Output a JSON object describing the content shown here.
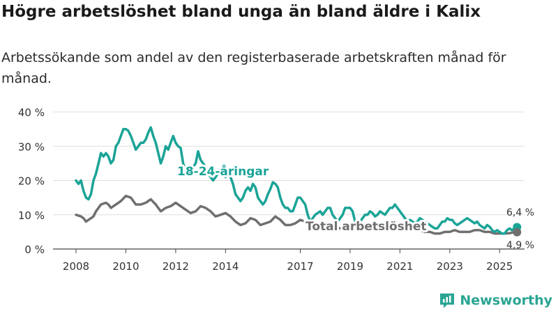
{
  "title": "Högre arbetslöshet bland unga än bland äldre i Kalix",
  "subtitle": "Arbetssökande som andel av den registerbaserade arbetskraften månad för månad.",
  "brand": "Newsworthy",
  "colors": {
    "youth": "#1aa497",
    "total": "#6f6f6f",
    "grid": "#dddddd",
    "brand": "#2aa593"
  },
  "chart_data": {
    "type": "line",
    "title": "Högre arbetslöshet bland unga än bland äldre i Kalix",
    "ylim": [
      0,
      40
    ],
    "yticks": [
      0,
      10,
      20,
      30,
      40
    ],
    "ytick_labels": [
      "0 %",
      "10 %",
      "20 %",
      "30 %",
      "40 %"
    ],
    "xlim": [
      2008.0,
      2026.0
    ],
    "xticks": [
      2008,
      2010,
      2012,
      2014,
      2017,
      2019,
      2021,
      2023,
      2025
    ],
    "xtick_labels": [
      "2008",
      "2010",
      "2012",
      "2014",
      "2017",
      "2019",
      "2021",
      "2023",
      "2025"
    ],
    "series": [
      {
        "name": "18-24-åringar",
        "label": "18-24-åringar",
        "end_label": "6,4 %",
        "points": [
          [
            2008.0,
            20
          ],
          [
            2008.1,
            19
          ],
          [
            2008.2,
            20
          ],
          [
            2008.3,
            17
          ],
          [
            2008.4,
            15
          ],
          [
            2008.5,
            14.5
          ],
          [
            2008.6,
            16
          ],
          [
            2008.7,
            20
          ],
          [
            2008.8,
            22
          ],
          [
            2008.9,
            25
          ],
          [
            2009.0,
            28
          ],
          [
            2009.1,
            27
          ],
          [
            2009.2,
            28
          ],
          [
            2009.3,
            27
          ],
          [
            2009.4,
            25
          ],
          [
            2009.5,
            26
          ],
          [
            2009.6,
            30
          ],
          [
            2009.7,
            31
          ],
          [
            2009.8,
            33
          ],
          [
            2009.9,
            35
          ],
          [
            2010.0,
            35
          ],
          [
            2010.1,
            34.5
          ],
          [
            2010.2,
            33
          ],
          [
            2010.3,
            31
          ],
          [
            2010.4,
            29
          ],
          [
            2010.5,
            30
          ],
          [
            2010.6,
            31
          ],
          [
            2010.7,
            31
          ],
          [
            2010.8,
            32
          ],
          [
            2010.9,
            34
          ],
          [
            2011.0,
            35.5
          ],
          [
            2011.1,
            33
          ],
          [
            2011.2,
            31
          ],
          [
            2011.3,
            28
          ],
          [
            2011.4,
            25
          ],
          [
            2011.5,
            27
          ],
          [
            2011.6,
            30
          ],
          [
            2011.7,
            29
          ],
          [
            2011.8,
            31
          ],
          [
            2011.9,
            33
          ],
          [
            2012.0,
            31
          ],
          [
            2012.1,
            30
          ],
          [
            2012.2,
            29.5
          ],
          [
            2012.3,
            25
          ],
          [
            2012.4,
            23
          ],
          [
            2012.5,
            24
          ],
          [
            2012.6,
            22
          ],
          [
            2012.7,
            24
          ],
          [
            2012.8,
            25
          ],
          [
            2012.9,
            28.5
          ],
          [
            2013.0,
            26
          ],
          [
            2013.1,
            25
          ],
          [
            2013.2,
            24
          ],
          [
            2013.3,
            22
          ],
          [
            2013.4,
            21
          ],
          [
            2013.5,
            20
          ],
          [
            2013.6,
            21
          ],
          [
            2013.7,
            22
          ],
          [
            2013.8,
            23
          ],
          [
            2013.9,
            22
          ],
          [
            2014.0,
            21
          ],
          [
            2014.1,
            22
          ],
          [
            2014.2,
            21
          ],
          [
            2014.3,
            19
          ],
          [
            2014.4,
            16
          ],
          [
            2014.5,
            15
          ],
          [
            2014.6,
            14
          ],
          [
            2014.7,
            15
          ],
          [
            2014.8,
            17
          ],
          [
            2014.9,
            18
          ],
          [
            2015.0,
            17
          ],
          [
            2015.1,
            19
          ],
          [
            2015.2,
            18
          ],
          [
            2015.3,
            15
          ],
          [
            2015.4,
            14
          ],
          [
            2015.5,
            13
          ],
          [
            2015.6,
            14
          ],
          [
            2015.7,
            16
          ],
          [
            2015.8,
            17.5
          ],
          [
            2015.9,
            19.5
          ],
          [
            2016.0,
            19
          ],
          [
            2016.1,
            18
          ],
          [
            2016.2,
            15
          ],
          [
            2016.3,
            13
          ],
          [
            2016.4,
            12
          ],
          [
            2016.5,
            12
          ],
          [
            2016.6,
            11
          ],
          [
            2016.7,
            11
          ],
          [
            2016.8,
            13
          ],
          [
            2016.9,
            15
          ],
          [
            2017.0,
            15
          ],
          [
            2017.1,
            14
          ],
          [
            2017.2,
            13
          ],
          [
            2017.3,
            10
          ],
          [
            2017.4,
            8
          ],
          [
            2017.5,
            9
          ],
          [
            2017.6,
            10
          ],
          [
            2017.7,
            10.5
          ],
          [
            2017.8,
            11
          ],
          [
            2017.9,
            10
          ],
          [
            2018.0,
            11
          ],
          [
            2018.1,
            12
          ],
          [
            2018.2,
            12
          ],
          [
            2018.3,
            10
          ],
          [
            2018.4,
            9
          ],
          [
            2018.5,
            8
          ],
          [
            2018.6,
            9
          ],
          [
            2018.7,
            10
          ],
          [
            2018.8,
            12
          ],
          [
            2018.9,
            12
          ],
          [
            2019.0,
            12
          ],
          [
            2019.1,
            11
          ],
          [
            2019.2,
            8
          ],
          [
            2019.3,
            7
          ],
          [
            2019.4,
            8
          ],
          [
            2019.5,
            9
          ],
          [
            2019.6,
            10
          ],
          [
            2019.7,
            10
          ],
          [
            2019.8,
            11
          ],
          [
            2019.9,
            10.5
          ],
          [
            2020.0,
            9.5
          ],
          [
            2020.1,
            10
          ],
          [
            2020.2,
            11
          ],
          [
            2020.3,
            10.5
          ],
          [
            2020.4,
            10
          ],
          [
            2020.5,
            11
          ],
          [
            2020.6,
            12
          ],
          [
            2020.7,
            12
          ],
          [
            2020.8,
            13
          ],
          [
            2020.9,
            12
          ],
          [
            2021.0,
            11
          ],
          [
            2021.1,
            10
          ],
          [
            2021.2,
            9
          ],
          [
            2021.3,
            8
          ],
          [
            2021.4,
            8.5
          ],
          [
            2021.5,
            8
          ],
          [
            2021.6,
            7.5
          ],
          [
            2021.7,
            8
          ],
          [
            2021.8,
            9
          ],
          [
            2021.9,
            8.5
          ],
          [
            2022.0,
            8
          ],
          [
            2022.1,
            7.5
          ],
          [
            2022.2,
            7
          ],
          [
            2022.3,
            6.5
          ],
          [
            2022.4,
            6
          ],
          [
            2022.5,
            6
          ],
          [
            2022.6,
            7
          ],
          [
            2022.7,
            8
          ],
          [
            2022.8,
            8
          ],
          [
            2022.9,
            9
          ],
          [
            2023.0,
            8.5
          ],
          [
            2023.1,
            8.5
          ],
          [
            2023.2,
            7.5
          ],
          [
            2023.3,
            7
          ],
          [
            2023.4,
            7.5
          ],
          [
            2023.5,
            8
          ],
          [
            2023.6,
            8.5
          ],
          [
            2023.7,
            9
          ],
          [
            2023.8,
            8.5
          ],
          [
            2023.9,
            8
          ],
          [
            2024.0,
            7.5
          ],
          [
            2024.1,
            8
          ],
          [
            2024.2,
            7
          ],
          [
            2024.3,
            6.5
          ],
          [
            2024.4,
            6
          ],
          [
            2024.5,
            7
          ],
          [
            2024.6,
            6.5
          ],
          [
            2024.7,
            5.5
          ],
          [
            2024.8,
            5
          ],
          [
            2024.9,
            5.5
          ],
          [
            2025.0,
            5
          ],
          [
            2025.1,
            4.5
          ],
          [
            2025.2,
            4.5
          ],
          [
            2025.3,
            5.5
          ],
          [
            2025.4,
            6
          ],
          [
            2025.5,
            5.5
          ],
          [
            2025.6,
            6
          ],
          [
            2025.7,
            6.4
          ]
        ]
      },
      {
        "name": "Total arbetslöshet",
        "label": "Total arbetslöshet",
        "end_label": "4,9 %",
        "points": [
          [
            2008.0,
            10
          ],
          [
            2008.2,
            9.5
          ],
          [
            2008.3,
            9
          ],
          [
            2008.4,
            8
          ],
          [
            2008.5,
            8.5
          ],
          [
            2008.6,
            9
          ],
          [
            2008.7,
            9.5
          ],
          [
            2008.8,
            11
          ],
          [
            2008.9,
            12
          ],
          [
            2009.0,
            13
          ],
          [
            2009.2,
            13.5
          ],
          [
            2009.3,
            13
          ],
          [
            2009.4,
            12
          ],
          [
            2009.5,
            12.5
          ],
          [
            2009.6,
            13
          ],
          [
            2009.8,
            14
          ],
          [
            2010.0,
            15.5
          ],
          [
            2010.2,
            15
          ],
          [
            2010.4,
            13
          ],
          [
            2010.6,
            13
          ],
          [
            2010.8,
            13.5
          ],
          [
            2011.0,
            14.5
          ],
          [
            2011.2,
            13
          ],
          [
            2011.4,
            11
          ],
          [
            2011.6,
            12
          ],
          [
            2011.8,
            12.5
          ],
          [
            2012.0,
            13.5
          ],
          [
            2012.2,
            12.5
          ],
          [
            2012.4,
            11.5
          ],
          [
            2012.6,
            10.5
          ],
          [
            2012.8,
            11
          ],
          [
            2013.0,
            12.5
          ],
          [
            2013.2,
            12
          ],
          [
            2013.4,
            11
          ],
          [
            2013.6,
            9.5
          ],
          [
            2013.8,
            10
          ],
          [
            2014.0,
            10.5
          ],
          [
            2014.2,
            9.5
          ],
          [
            2014.4,
            8
          ],
          [
            2014.6,
            7
          ],
          [
            2014.8,
            7.5
          ],
          [
            2015.0,
            9
          ],
          [
            2015.2,
            8.5
          ],
          [
            2015.4,
            7
          ],
          [
            2015.6,
            7.5
          ],
          [
            2015.8,
            8
          ],
          [
            2016.0,
            9.5
          ],
          [
            2016.2,
            8.5
          ],
          [
            2016.4,
            7
          ],
          [
            2016.6,
            7
          ],
          [
            2016.8,
            7.5
          ],
          [
            2017.0,
            8.5
          ],
          [
            2017.2,
            8
          ],
          [
            2017.4,
            7
          ],
          [
            2017.6,
            6.5
          ],
          [
            2017.8,
            6.5
          ],
          [
            2018.0,
            7
          ],
          [
            2018.2,
            7
          ],
          [
            2018.4,
            6.5
          ],
          [
            2018.6,
            6
          ],
          [
            2018.8,
            6.5
          ],
          [
            2019.0,
            7
          ],
          [
            2019.2,
            6.5
          ],
          [
            2019.4,
            6
          ],
          [
            2019.6,
            6
          ],
          [
            2019.8,
            6.5
          ],
          [
            2020.0,
            7
          ],
          [
            2020.2,
            7
          ],
          [
            2020.4,
            7.5
          ],
          [
            2020.6,
            7
          ],
          [
            2020.8,
            7
          ],
          [
            2021.0,
            6.5
          ],
          [
            2021.2,
            6
          ],
          [
            2021.4,
            5.5
          ],
          [
            2021.6,
            5.5
          ],
          [
            2021.8,
            5.5
          ],
          [
            2022.0,
            5
          ],
          [
            2022.2,
            5
          ],
          [
            2022.4,
            4.5
          ],
          [
            2022.6,
            4.5
          ],
          [
            2022.8,
            5
          ],
          [
            2023.0,
            5
          ],
          [
            2023.2,
            5.5
          ],
          [
            2023.4,
            5
          ],
          [
            2023.6,
            5
          ],
          [
            2023.8,
            5
          ],
          [
            2024.0,
            5.5
          ],
          [
            2024.2,
            5.5
          ],
          [
            2024.4,
            5
          ],
          [
            2024.6,
            5
          ],
          [
            2024.8,
            4.5
          ],
          [
            2025.0,
            4.5
          ],
          [
            2025.2,
            4.5
          ],
          [
            2025.4,
            4.6
          ],
          [
            2025.5,
            4.8
          ],
          [
            2025.7,
            4.9
          ]
        ]
      }
    ]
  }
}
